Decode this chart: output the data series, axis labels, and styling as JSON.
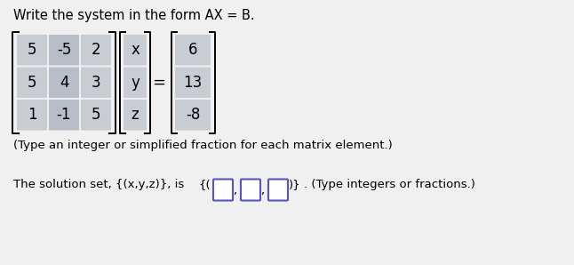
{
  "title": "Write the system in the form AX = B.",
  "matrix_A": [
    [
      "5",
      "-5",
      "2"
    ],
    [
      "5",
      "4",
      "3"
    ],
    [
      "1",
      "-1",
      "5"
    ]
  ],
  "matrix_X": [
    [
      "x"
    ],
    [
      "y"
    ],
    [
      "z"
    ]
  ],
  "matrix_B": [
    [
      "6"
    ],
    [
      "13"
    ],
    [
      "-8"
    ]
  ],
  "note1": "(Type an integer or simplified fraction for each matrix element.)",
  "note2": "The solution set, {(x,y,z)}, is ",
  "note3": ". (Type integers or fractions.)",
  "bg_color": "#f0f0f0",
  "cell_color_A_normal": "#c8cdd4",
  "cell_color_A_hi": "#b8bec8",
  "cell_color_B": "#c8cdd4",
  "title_fontsize": 10.5,
  "note_fontsize": 9.5,
  "matrix_fontsize": 12
}
